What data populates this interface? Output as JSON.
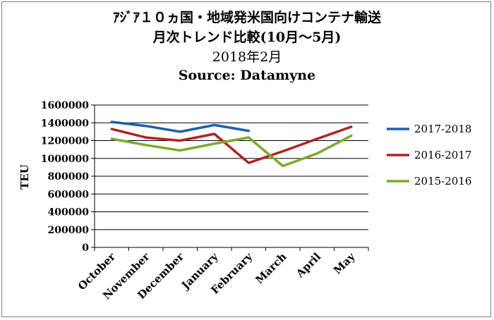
{
  "chart_data": {
    "type": "line",
    "title_lines": [
      "ｱｼﾞｱ１０ヵ国・地域発米国向けコンテナ輸送",
      "月次トレンド比較(10月～5月)",
      "2018年2月",
      "Source: Datamyne"
    ],
    "xlabel": "",
    "ylabel": "TEU",
    "categories": [
      "October",
      "November",
      "December",
      "January",
      "February",
      "March",
      "April",
      "May"
    ],
    "ylim": [
      0,
      1600000
    ],
    "yticks": [
      0,
      200000,
      400000,
      600000,
      800000,
      1000000,
      1200000,
      1400000,
      1600000
    ],
    "ytick_labels": [
      "0",
      "200000",
      "400000",
      "600000",
      "800000",
      "1000000",
      "1200000",
      "1400000",
      "1600000"
    ],
    "grid": true,
    "legend_position": "right",
    "series": [
      {
        "name": "2017-2018",
        "color": "#1f5fa8",
        "values": [
          1410000,
          1365000,
          1300000,
          1375000,
          1310000,
          null,
          null,
          null
        ]
      },
      {
        "name": "2016-2017",
        "color": "#b22222",
        "values": [
          1330000,
          1235000,
          1200000,
          1275000,
          950000,
          1080000,
          1220000,
          1355000
        ]
      },
      {
        "name": "2015-2016",
        "color": "#7aab2a",
        "values": [
          1220000,
          1150000,
          1090000,
          1165000,
          1235000,
          915000,
          1055000,
          1255000
        ]
      }
    ]
  }
}
